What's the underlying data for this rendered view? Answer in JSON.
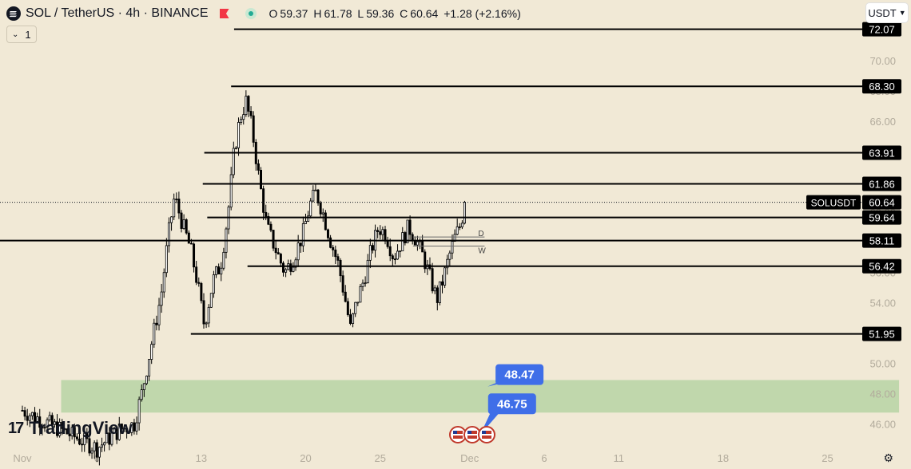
{
  "header": {
    "symbol_title": "SOL / TetherUS · 4h · BINANCE",
    "ohlc": {
      "open_label": "O",
      "open": "59.37",
      "high_label": "H",
      "high": "61.78",
      "low_label": "L",
      "low": "59.36",
      "close_label": "C",
      "close": "60.64",
      "change": "+1.28 (+2.16%)"
    },
    "interval_count": "1",
    "currency": "USDT"
  },
  "branding": {
    "logo_mark": "17",
    "name": "TradingView"
  },
  "colors": {
    "background": "#f1e9d6",
    "candle": "#000000",
    "zone": "#b7d3a4",
    "price_badge": "#3f6ee8",
    "change_positive": "#22ab94",
    "flag": "#f23645"
  },
  "chart_data": {
    "type": "candlestick",
    "title": "SOL / TetherUS · 4h · BINANCE",
    "ylim": [
      44.5,
      74.0
    ],
    "y_ticks": [
      46.0,
      48.0,
      50.0,
      52.0,
      54.0,
      56.0,
      58.0,
      60.0,
      62.0,
      64.0,
      66.0,
      68.0,
      70.0,
      72.0
    ],
    "y_tick_labels": [
      "46.00",
      "48.00",
      "50.00",
      "52.00",
      "54.00",
      "56.00",
      "58.00",
      "60.00",
      "62.00",
      "64.00",
      "66.00",
      "68.00",
      "70.00",
      "72.00"
    ],
    "x_ticks": [
      {
        "label": "Nov",
        "day": 1
      },
      {
        "label": "6",
        "day": 6
      },
      {
        "label": "13",
        "day": 13
      },
      {
        "label": "20",
        "day": 20
      },
      {
        "label": "25",
        "day": 25
      },
      {
        "label": "Dec",
        "day": 31
      },
      {
        "label": "6",
        "day": 36
      },
      {
        "label": "11",
        "day": 41
      },
      {
        "label": "18",
        "day": 48
      },
      {
        "label": "25",
        "day": 55
      }
    ],
    "x_range_days": [
      -0.5,
      60.6
    ],
    "price_series": {
      "name": "SOLUSDT",
      "knots": [
        [
          1,
          46.9
        ],
        [
          6,
          44.4
        ],
        [
          7.5,
          45.6
        ],
        [
          8.5,
          46.0
        ],
        [
          9,
          48.0
        ],
        [
          9.7,
          51.5
        ],
        [
          10.3,
          54.5
        ],
        [
          10.8,
          58.5
        ],
        [
          11.2,
          61.0
        ],
        [
          11.8,
          59.0
        ],
        [
          12.3,
          57.5
        ],
        [
          12.8,
          55.0
        ],
        [
          13.2,
          52.5
        ],
        [
          13.8,
          55.5
        ],
        [
          14.3,
          56.5
        ],
        [
          14.8,
          60.0
        ],
        [
          15.2,
          64.0
        ],
        [
          15.6,
          66.2
        ],
        [
          16.0,
          67.3
        ],
        [
          16.4,
          65.5
        ],
        [
          16.9,
          62.0
        ],
        [
          17.4,
          59.0
        ],
        [
          18.0,
          57.5
        ],
        [
          18.6,
          56.0
        ],
        [
          19.2,
          57.0
        ],
        [
          19.8,
          58.5
        ],
        [
          20.3,
          60.5
        ],
        [
          20.7,
          61.3
        ],
        [
          21.2,
          59.8
        ],
        [
          21.7,
          58.0
        ],
        [
          22.2,
          56.5
        ],
        [
          22.6,
          54.5
        ],
        [
          23.0,
          52.3
        ],
        [
          23.4,
          54.0
        ],
        [
          23.9,
          55.5
        ],
        [
          24.4,
          57.5
        ],
        [
          24.9,
          59.0
        ],
        [
          25.4,
          58.5
        ],
        [
          25.9,
          57.0
        ],
        [
          26.4,
          58.0
        ],
        [
          26.9,
          59.0
        ],
        [
          27.4,
          58.2
        ],
        [
          27.9,
          57.0
        ],
        [
          28.4,
          55.5
        ],
        [
          28.8,
          54.2
        ],
        [
          29.2,
          55.5
        ],
        [
          29.6,
          57.0
        ],
        [
          30.0,
          58.3
        ],
        [
          30.4,
          59.2
        ],
        [
          30.7,
          60.64
        ]
      ],
      "last_close": 60.64
    }
  },
  "levels": [
    {
      "value": 72.07,
      "label": "72.07",
      "from_day": 15.2
    },
    {
      "value": 68.3,
      "label": "68.30",
      "from_day": 15.0
    },
    {
      "value": 63.91,
      "label": "63.91",
      "from_day": 13.2
    },
    {
      "value": 61.86,
      "label": "61.86",
      "from_day": 13.1
    },
    {
      "value": 59.64,
      "label": "59.64",
      "from_day": 13.4
    },
    {
      "value": 58.11,
      "label": "58.11",
      "from_day": -0.5
    },
    {
      "value": 56.42,
      "label": "56.42",
      "from_day": 16.1
    },
    {
      "value": 51.95,
      "label": "51.95",
      "from_day": 12.3
    }
  ],
  "current_price": {
    "value": 60.64,
    "label": "60.64",
    "symbol": "SOLUSDT"
  },
  "dw_markers": {
    "d": "D",
    "w": "W",
    "value_d": 58.35,
    "value_w": 57.75,
    "from_day": 27.2,
    "to_day": 32.0
  },
  "zone": {
    "low": 46.75,
    "high": 48.9,
    "from_day": 3.6,
    "to_day": 59.8
  },
  "badges": [
    {
      "label": "48.47",
      "value": 48.47,
      "day": 32.2
    },
    {
      "label": "46.75",
      "value": 46.75,
      "day": 31.7
    }
  ],
  "event_icons": [
    "us-flag-icon",
    "us-flag-icon",
    "us-flag-icon"
  ]
}
